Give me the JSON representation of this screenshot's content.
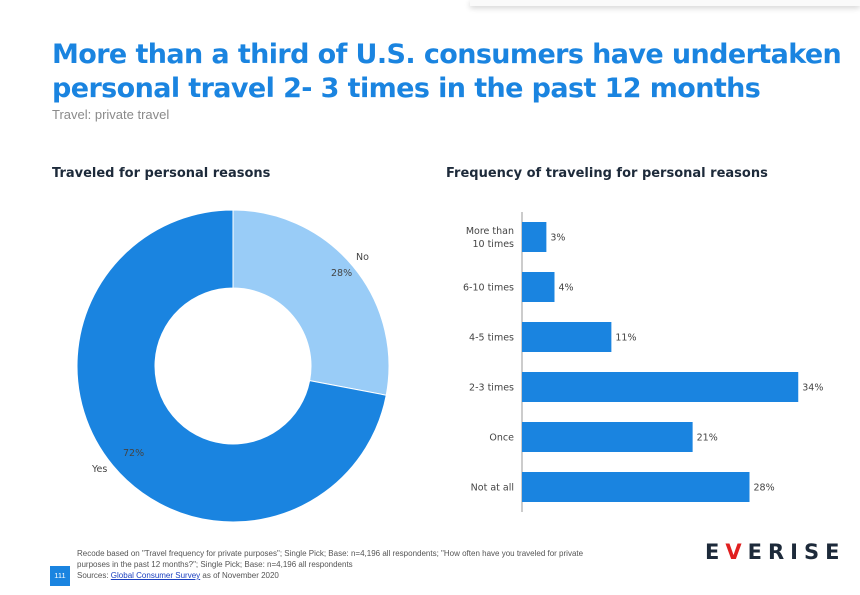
{
  "page": {
    "title_line1": "More than a third of U.S. consumers have undertaken",
    "title_line2": "personal travel 2- 3 times in the past 12 months",
    "subtitle": "Travel: private travel",
    "page_number": "111",
    "footnote_line1": "Recode based on \"Travel frequency for private purposes\"; Single Pick; Base: n=4,196 all respondents; \"How often have you traveled for private",
    "footnote_line2": "purposes in the past 12 months?\"; Single Pick; Base: n=4,196 all respondents",
    "sources_label": "Sources: ",
    "sources_link": "Global Consumer Survey",
    "sources_suffix": " as of November 2020",
    "logo": {
      "prefix": "E",
      "accent": "V",
      "suffix": "ERISE"
    }
  },
  "colors": {
    "dark_blue": "#1a84e0",
    "light_blue": "#99ccf7",
    "title_blue": "#1a84e0",
    "logo_accent": "#e02020"
  },
  "chart_data": [
    {
      "type": "pie",
      "title": "Traveled for personal reasons",
      "donut": true,
      "slices": [
        {
          "name": "No",
          "value": 28,
          "label": "28%",
          "color": "#99ccf7"
        },
        {
          "name": "Yes",
          "value": 72,
          "label": "72%",
          "color": "#1a84e0"
        }
      ]
    },
    {
      "type": "bar",
      "orientation": "horizontal",
      "title": "Frequency of traveling for personal reasons",
      "categories": [
        [
          "More than",
          "10 times"
        ],
        [
          "6-10 times"
        ],
        [
          "4-5 times"
        ],
        [
          "2-3 times"
        ],
        [
          "Once"
        ],
        [
          "Not at all"
        ]
      ],
      "values": [
        3,
        4,
        11,
        34,
        21,
        28
      ],
      "labels": [
        "3%",
        "4%",
        "11%",
        "34%",
        "21%",
        "28%"
      ],
      "xlim": [
        0,
        40
      ],
      "color": "#1a84e0"
    }
  ]
}
